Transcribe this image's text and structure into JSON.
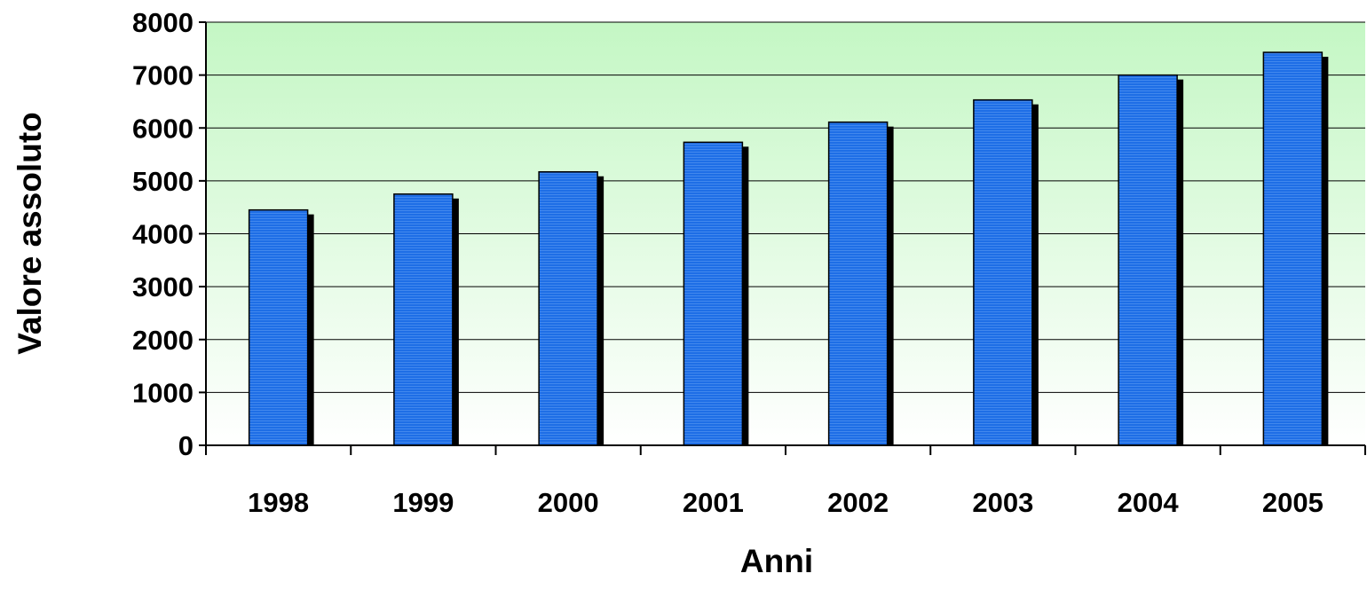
{
  "chart_data": {
    "type": "bar",
    "title": "",
    "xlabel": "Anni",
    "ylabel": "Valore assoluto",
    "categories": [
      "1998",
      "1999",
      "2000",
      "2001",
      "2002",
      "2003",
      "2004",
      "2005"
    ],
    "values": [
      4450,
      4750,
      5170,
      5730,
      6110,
      6530,
      7000,
      7430
    ],
    "ylim": [
      0,
      8000
    ],
    "yticks": [
      0,
      1000,
      2000,
      3000,
      4000,
      5000,
      6000,
      7000,
      8000
    ],
    "grid": true,
    "legend": "none"
  },
  "colors": {
    "bar_fill": "#1e6ee6",
    "bar_shadow": "#000000",
    "plot_bg_top": "#c4f7c4",
    "plot_bg_bottom": "#ffffff",
    "gridline": "#000000"
  }
}
